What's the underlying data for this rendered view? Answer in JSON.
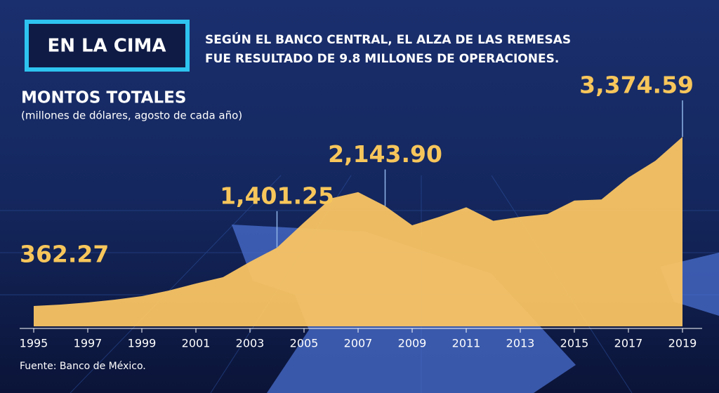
{
  "header": {
    "tag": "EN LA CIMA",
    "subtitle_lines": [
      "SEGÚN EL BANCO CENTRAL, EL ALZA DE LAS REMESAS",
      "FUE RESULTADO DE 9.8 MILLONES DE OPERACIONES."
    ]
  },
  "chart_data": {
    "type": "area",
    "title": "MONTOS TOTALES",
    "subtitle": "(millones de dólares, agosto de cada año)",
    "x": [
      1995,
      1996,
      1997,
      1998,
      1999,
      2000,
      2001,
      2002,
      2003,
      2004,
      2005,
      2006,
      2007,
      2008,
      2009,
      2010,
      2011,
      2012,
      2013,
      2014,
      2015,
      2016,
      2017,
      2018,
      2019
    ],
    "values": [
      362.27,
      387,
      425,
      475,
      537,
      637,
      762,
      875,
      1150,
      1401.25,
      1850,
      2280,
      2390,
      2143.9,
      1800,
      1950,
      2120,
      1880,
      1950,
      2000,
      2240,
      2260,
      2650,
      2950,
      3374.59
    ],
    "value_labels": [
      "362.27",
      null,
      null,
      null,
      null,
      null,
      null,
      null,
      null,
      "1,401.25",
      null,
      null,
      null,
      "2,143.90",
      null,
      null,
      null,
      null,
      null,
      null,
      null,
      null,
      null,
      null,
      "3,374.59"
    ],
    "color": "#f9c463",
    "label_color": "#f7c65b",
    "xlim": [
      1995,
      2019
    ],
    "xticks": [
      1995,
      1997,
      1999,
      2001,
      2003,
      2005,
      2007,
      2009,
      2011,
      2013,
      2015,
      2017,
      2019
    ],
    "ylim": [
      0,
      3500
    ],
    "source": "Fuente: Banco de México."
  }
}
